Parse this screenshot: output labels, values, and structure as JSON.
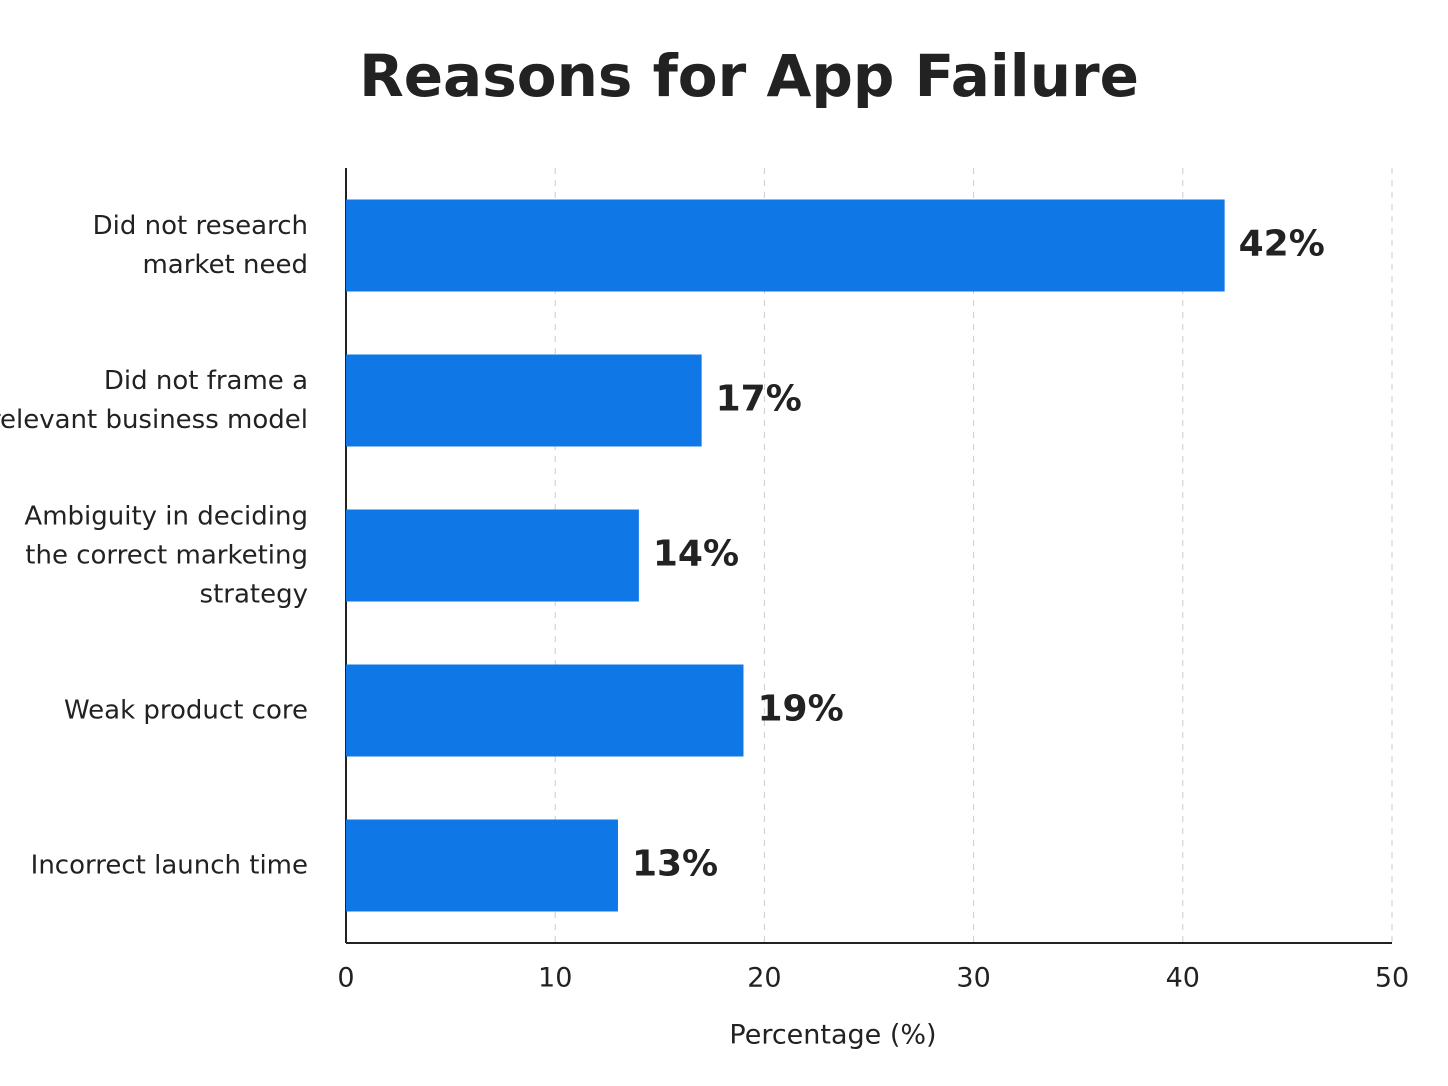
{
  "chart_data": {
    "type": "barh",
    "title": "Reasons for App Failure",
    "categories": [
      [
        "Did not research",
        "market need"
      ],
      [
        "Did not frame a",
        "relevant business model"
      ],
      [
        "Ambiguity in deciding",
        "the correct marketing",
        "strategy"
      ],
      [
        "Weak product core"
      ],
      [
        "Incorrect launch time"
      ]
    ],
    "values": [
      42,
      17,
      14,
      19,
      13
    ],
    "value_labels": [
      "42%",
      "17%",
      "14%",
      "19%",
      "13%"
    ],
    "color": "#0f77e6",
    "xlim": [
      0,
      50
    ],
    "xticks": [
      0,
      10,
      20,
      30,
      40,
      50
    ],
    "grid": true,
    "xlabel": "Percentage (%)"
  }
}
